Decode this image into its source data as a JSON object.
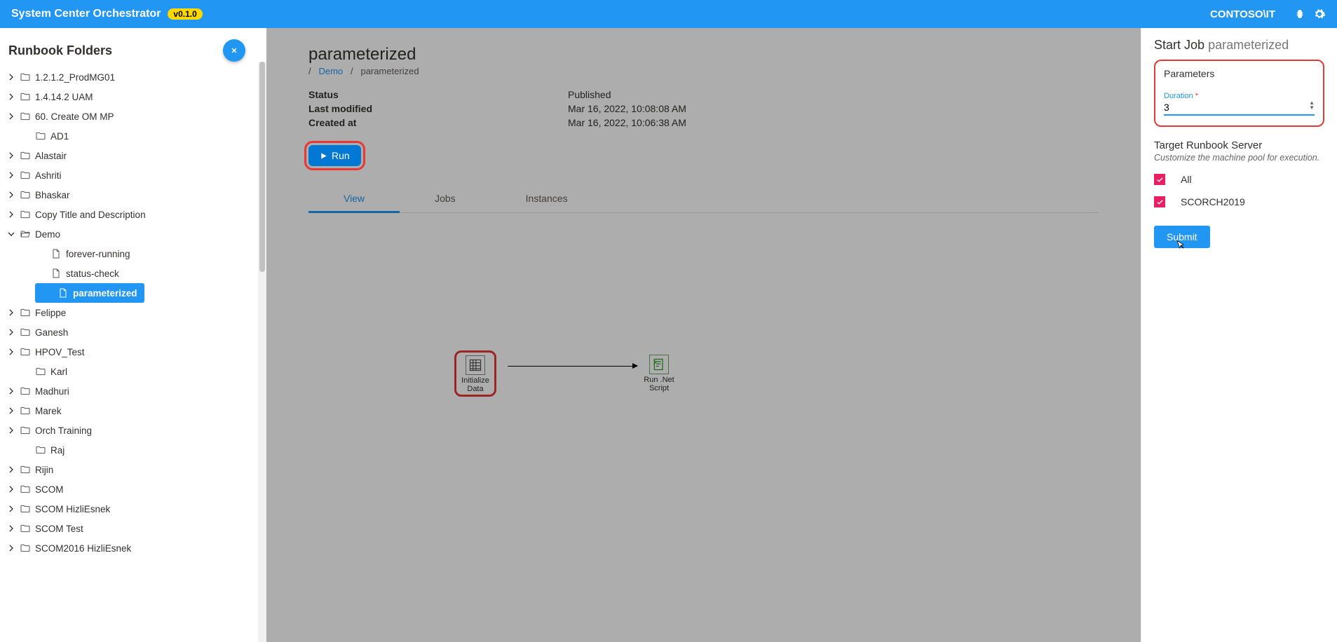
{
  "header": {
    "title": "System Center Orchestrator",
    "version": "v0.1.0",
    "user": "CONTOSO\\IT"
  },
  "sidebar": {
    "title": "Runbook Folders",
    "items": [
      {
        "label": "1.2.1.2_ProdMG01",
        "type": "folder",
        "indent": 0,
        "chevron": "right"
      },
      {
        "label": "1.4.14.2 UAM",
        "type": "folder",
        "indent": 0,
        "chevron": "right"
      },
      {
        "label": "60. Create OM MP",
        "type": "folder",
        "indent": 0,
        "chevron": "right"
      },
      {
        "label": "AD1",
        "type": "folder",
        "indent": 1,
        "chevron": "none"
      },
      {
        "label": "Alastair",
        "type": "folder",
        "indent": 0,
        "chevron": "right"
      },
      {
        "label": "Ashriti",
        "type": "folder",
        "indent": 0,
        "chevron": "right"
      },
      {
        "label": "Bhaskar",
        "type": "folder",
        "indent": 0,
        "chevron": "right"
      },
      {
        "label": "Copy Title and Description",
        "type": "folder",
        "indent": 0,
        "chevron": "right"
      },
      {
        "label": "Demo",
        "type": "folder-open",
        "indent": 0,
        "chevron": "down"
      },
      {
        "label": "forever-running",
        "type": "file",
        "indent": 2,
        "chevron": "none"
      },
      {
        "label": "status-check",
        "type": "file",
        "indent": 2,
        "chevron": "none"
      },
      {
        "label": "parameterized",
        "type": "file",
        "indent": 2,
        "chevron": "none",
        "selected": true
      },
      {
        "label": "Felippe",
        "type": "folder",
        "indent": 0,
        "chevron": "right"
      },
      {
        "label": "Ganesh",
        "type": "folder",
        "indent": 0,
        "chevron": "right"
      },
      {
        "label": "HPOV_Test",
        "type": "folder",
        "indent": 0,
        "chevron": "right"
      },
      {
        "label": "Karl",
        "type": "folder",
        "indent": 1,
        "chevron": "none"
      },
      {
        "label": "Madhuri",
        "type": "folder",
        "indent": 0,
        "chevron": "right"
      },
      {
        "label": "Marek",
        "type": "folder",
        "indent": 0,
        "chevron": "right"
      },
      {
        "label": "Orch Training",
        "type": "folder",
        "indent": 0,
        "chevron": "right"
      },
      {
        "label": "Raj",
        "type": "folder",
        "indent": 1,
        "chevron": "none"
      },
      {
        "label": "Rijin",
        "type": "folder",
        "indent": 0,
        "chevron": "right"
      },
      {
        "label": "SCOM",
        "type": "folder",
        "indent": 0,
        "chevron": "right"
      },
      {
        "label": "SCOM HizliEsnek",
        "type": "folder",
        "indent": 0,
        "chevron": "right"
      },
      {
        "label": "SCOM Test",
        "type": "folder",
        "indent": 0,
        "chevron": "right"
      },
      {
        "label": "SCOM2016 HizliEsnek",
        "type": "folder",
        "indent": 0,
        "chevron": "right"
      }
    ]
  },
  "main": {
    "title": "parameterized",
    "breadcrumb": {
      "root": "/",
      "demo": "Demo",
      "sep": "/",
      "current": "parameterized"
    },
    "meta": {
      "status_label": "Status",
      "status_value": "Published",
      "modified_label": "Last modified",
      "modified_value": "Mar 16, 2022, 10:08:08 AM",
      "created_label": "Created at",
      "created_value": "Mar 16, 2022, 10:06:38 AM"
    },
    "run_label": "Run",
    "tabs": {
      "view": "View",
      "jobs": "Jobs",
      "instances": "Instances"
    },
    "nodes": {
      "init": {
        "label1": "Initialize",
        "label2": "Data"
      },
      "script": {
        "label1": "Run .Net",
        "label2": "Script"
      }
    }
  },
  "panel": {
    "title": "Start Job",
    "subtitle": "parameterized",
    "params_header": "Parameters",
    "duration_label": "Duration",
    "duration_value": "3",
    "target_header": "Target Runbook Server",
    "target_sub": "Customize the machine pool for execution.",
    "all_label": "All",
    "server_label": "SCORCH2019",
    "submit": "Submit"
  }
}
